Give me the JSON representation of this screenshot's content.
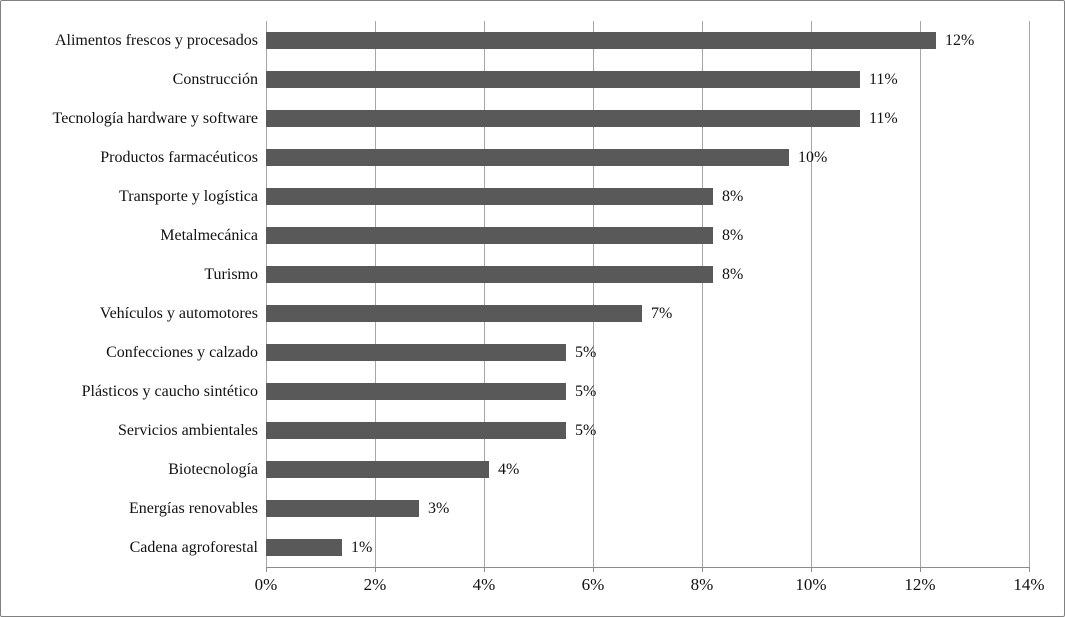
{
  "chart_data": {
    "type": "bar",
    "orientation": "horizontal",
    "title": "",
    "xlabel": "",
    "ylabel": "",
    "xlim": [
      0,
      14
    ],
    "x_tick_values": [
      0,
      2,
      4,
      6,
      8,
      10,
      12,
      14
    ],
    "x_tick_labels": [
      "0%",
      "2%",
      "4%",
      "6%",
      "8%",
      "10%",
      "12%",
      "14%"
    ],
    "grid": "vertical gridlines at each x tick",
    "legend": "none",
    "bar_color": "#595959",
    "gridline_color": "#a6a6a6",
    "axis_color": "#8c8c8c",
    "categories": [
      "Alimentos frescos y procesados",
      "Construcción",
      "Tecnología hardware y software",
      "Productos farmacéuticos",
      "Transporte y logística",
      "Metalmecánica",
      "Turismo",
      "Vehículos y automotores",
      "Confecciones y calzado",
      "Plásticos y caucho sintético",
      "Servicios ambientales",
      "Biotecnología",
      "Energías renovables",
      "Cadena agroforestal"
    ],
    "values": [
      12,
      11,
      11,
      10,
      8,
      8,
      8,
      7,
      5,
      5,
      5,
      4,
      3,
      1
    ],
    "value_labels": [
      "12%",
      "11%",
      "11%",
      "10%",
      "8%",
      "8%",
      "8%",
      "7%",
      "5%",
      "5%",
      "5%",
      "4%",
      "3%",
      "1%"
    ],
    "bar_lengths_pct": [
      12.3,
      10.9,
      10.9,
      9.6,
      8.2,
      8.2,
      8.2,
      6.9,
      5.5,
      5.5,
      5.5,
      4.1,
      2.8,
      1.4
    ]
  }
}
